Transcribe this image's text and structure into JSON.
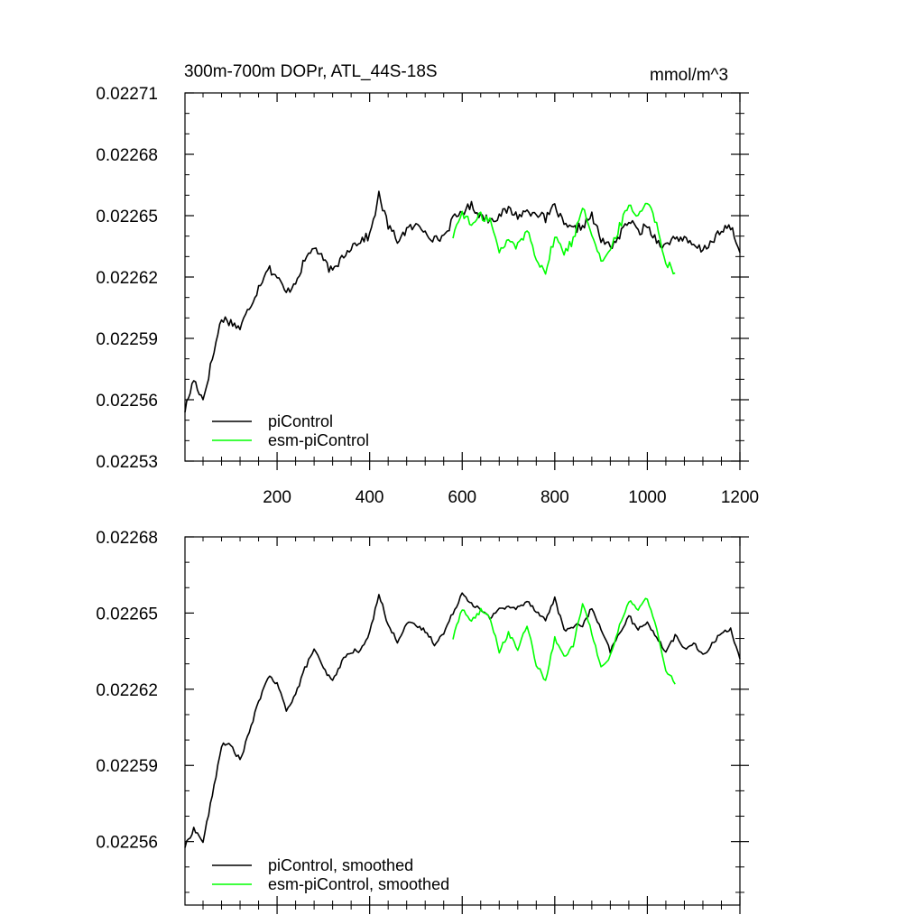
{
  "figure": {
    "title_left": "300m-700m DOPr, ATL_44S-18S",
    "title_right": "mmol/m^3"
  },
  "chart_data": [
    {
      "type": "line",
      "title": "300m-700m DOPr, ATL_44S-18S",
      "units": "mmol/m^3",
      "xlim": [
        1,
        1200
      ],
      "ylim": [
        0.02253,
        0.02271
      ],
      "x_ticks": [
        200,
        400,
        600,
        800,
        1000,
        1200
      ],
      "x_tick_labels": [
        "200",
        "400",
        "600",
        "800",
        "1000",
        "1200"
      ],
      "y_ticks": [
        0.02253,
        0.02256,
        0.02259,
        0.02262,
        0.02265,
        0.02268,
        0.02271
      ],
      "y_tick_labels": [
        "0.02253",
        "0.02256",
        "0.02259",
        "0.02262",
        "0.02265",
        "0.02268",
        "0.02271"
      ],
      "legend": [
        "piControl",
        "esm-piControl"
      ],
      "legend_position": "bottom-left",
      "series": [
        {
          "name": "piControl",
          "color": "#000000",
          "x": [
            1,
            20,
            40,
            60,
            80,
            100,
            120,
            140,
            160,
            180,
            200,
            220,
            240,
            260,
            280,
            300,
            320,
            340,
            360,
            380,
            400,
            420,
            440,
            460,
            480,
            500,
            520,
            540,
            560,
            580,
            600,
            620,
            640,
            660,
            680,
            700,
            720,
            740,
            760,
            780,
            800,
            820,
            840,
            860,
            880,
            900,
            920,
            940,
            960,
            980,
            1000,
            1020,
            1040,
            1060,
            1080,
            1100,
            1120,
            1140,
            1160,
            1180,
            1200
          ],
          "y": [
            0.022555,
            0.02257,
            0.02256,
            0.02258,
            0.0226,
            0.022598,
            0.022595,
            0.022605,
            0.022615,
            0.022625,
            0.02262,
            0.022612,
            0.022618,
            0.022628,
            0.022635,
            0.022628,
            0.022622,
            0.02263,
            0.022635,
            0.022638,
            0.02264,
            0.02266,
            0.022645,
            0.022638,
            0.022643,
            0.022645,
            0.022643,
            0.022638,
            0.02264,
            0.022648,
            0.022652,
            0.022655,
            0.02265,
            0.022648,
            0.02265,
            0.022653,
            0.02265,
            0.022652,
            0.022652,
            0.022648,
            0.022655,
            0.022645,
            0.022643,
            0.022645,
            0.02265,
            0.022638,
            0.022635,
            0.02264,
            0.022648,
            0.022642,
            0.022645,
            0.022638,
            0.022635,
            0.02264,
            0.022638,
            0.022635,
            0.022633,
            0.022638,
            0.022642,
            0.022645,
            0.022632
          ]
        },
        {
          "name": "esm-piControl",
          "color": "#00ff00",
          "x": [
            580,
            600,
            620,
            640,
            660,
            680,
            700,
            720,
            740,
            760,
            780,
            800,
            820,
            840,
            860,
            880,
            900,
            920,
            940,
            960,
            980,
            1000,
            1020,
            1040,
            1060
          ],
          "y": [
            0.02264,
            0.022652,
            0.022645,
            0.02265,
            0.022648,
            0.022632,
            0.022638,
            0.022635,
            0.022643,
            0.02263,
            0.022622,
            0.02264,
            0.022632,
            0.022638,
            0.022655,
            0.022642,
            0.022628,
            0.022632,
            0.022645,
            0.022655,
            0.02265,
            0.022658,
            0.022645,
            0.022628,
            0.022622
          ]
        }
      ]
    },
    {
      "type": "line",
      "xlim": [
        1,
        1200
      ],
      "ylim": [
        0.022535,
        0.02268
      ],
      "x_ticks": [
        200,
        400,
        600,
        800,
        1000,
        1200
      ],
      "y_ticks": [
        0.02256,
        0.02259,
        0.02262,
        0.02265,
        0.02268
      ],
      "y_tick_labels": [
        "0.02256",
        "0.02259",
        "0.02262",
        "0.02265",
        "0.02268"
      ],
      "legend": [
        "piControl, smoothed",
        "esm-piControl, smoothed"
      ],
      "legend_position": "bottom-left",
      "series": [
        {
          "name": "piControl, smoothed",
          "color": "#000000",
          "x": [
            1,
            20,
            40,
            60,
            80,
            100,
            120,
            140,
            160,
            180,
            200,
            220,
            240,
            260,
            280,
            300,
            320,
            340,
            360,
            380,
            400,
            420,
            440,
            460,
            480,
            500,
            520,
            540,
            560,
            580,
            600,
            620,
            640,
            660,
            680,
            700,
            720,
            740,
            760,
            780,
            800,
            820,
            840,
            860,
            880,
            900,
            920,
            940,
            960,
            980,
            1000,
            1020,
            1040,
            1060,
            1080,
            1100,
            1120,
            1140,
            1160,
            1180,
            1200
          ],
          "y": [
            0.022558,
            0.022565,
            0.02256,
            0.022578,
            0.022598,
            0.022598,
            0.022592,
            0.022603,
            0.022615,
            0.022625,
            0.022622,
            0.022612,
            0.022618,
            0.022628,
            0.022636,
            0.022628,
            0.022623,
            0.022631,
            0.022635,
            0.022635,
            0.022642,
            0.022658,
            0.022645,
            0.022639,
            0.022646,
            0.022645,
            0.022643,
            0.022638,
            0.022642,
            0.02265,
            0.022658,
            0.022654,
            0.022651,
            0.022648,
            0.022652,
            0.022652,
            0.022652,
            0.022655,
            0.022651,
            0.022647,
            0.022656,
            0.022643,
            0.022645,
            0.022645,
            0.022652,
            0.022643,
            0.022635,
            0.022642,
            0.022649,
            0.022643,
            0.022647,
            0.02264,
            0.022635,
            0.022641,
            0.022636,
            0.022638,
            0.022633,
            0.022638,
            0.022642,
            0.022644,
            0.022632
          ]
        },
        {
          "name": "esm-piControl, smoothed",
          "color": "#00ff00",
          "x": [
            580,
            600,
            620,
            640,
            660,
            680,
            700,
            720,
            740,
            760,
            780,
            800,
            820,
            840,
            860,
            880,
            900,
            920,
            940,
            960,
            980,
            1000,
            1020,
            1040,
            1060
          ],
          "y": [
            0.02264,
            0.022652,
            0.022647,
            0.022651,
            0.022648,
            0.022635,
            0.022642,
            0.022636,
            0.022645,
            0.02263,
            0.022623,
            0.02264,
            0.022633,
            0.022637,
            0.022654,
            0.022642,
            0.022629,
            0.022633,
            0.022645,
            0.022655,
            0.022651,
            0.022656,
            0.022644,
            0.022628,
            0.022622
          ]
        }
      ]
    }
  ]
}
